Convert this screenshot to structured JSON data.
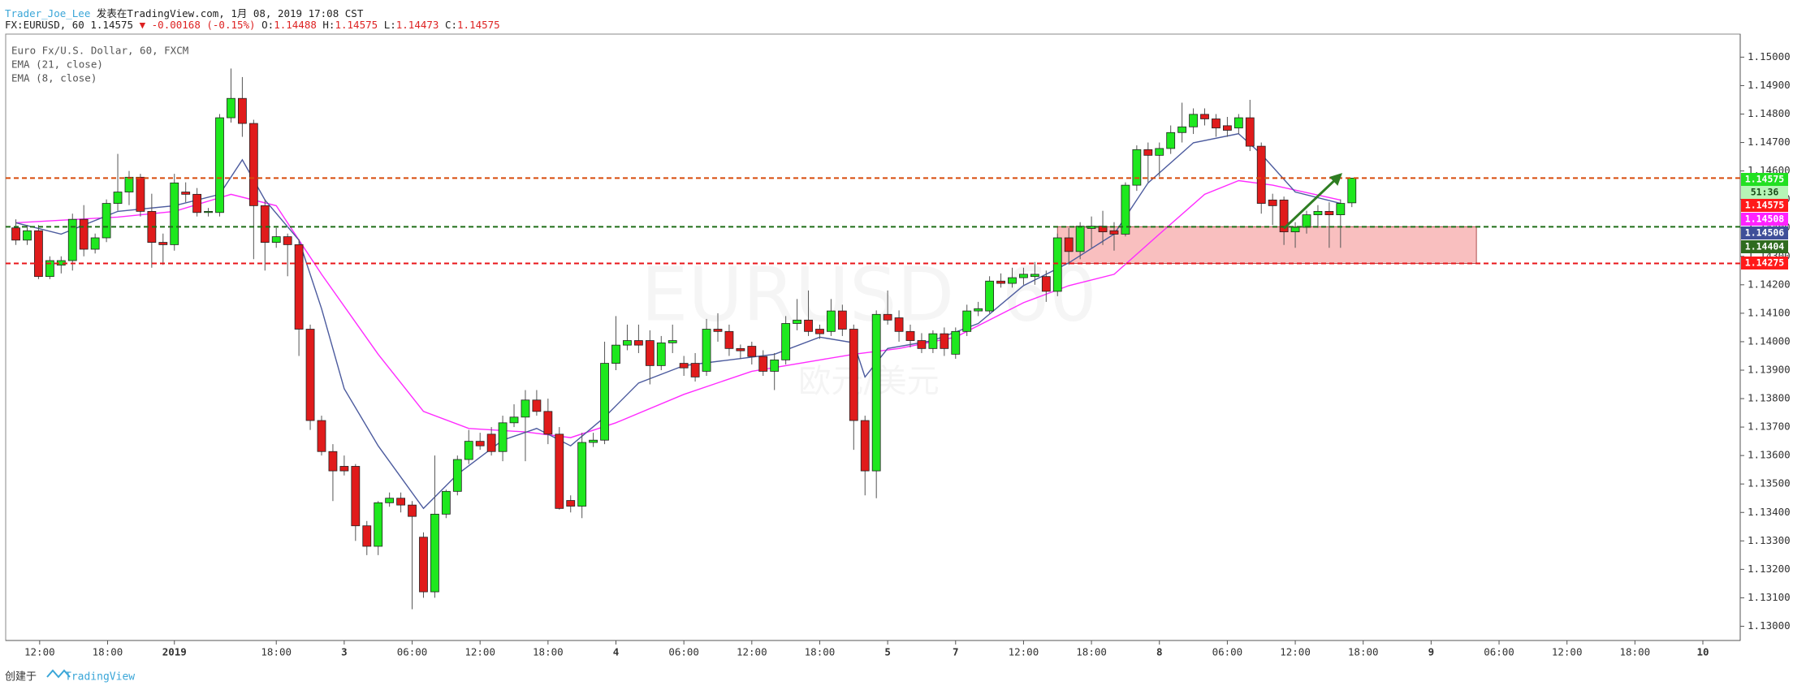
{
  "header": {
    "author": "Trader_Joe_Lee",
    "published": "发表在TradingView.com, 1月 08, 2019 17:08 CST",
    "symbol": "FX:EURUSD, 60",
    "last": "1.14575",
    "change": "▼ -0.00168 (-0.15%)",
    "ohlc": [
      {
        "key": "O:",
        "val": "1.14488"
      },
      {
        "key": "H:",
        "val": "1.14575"
      },
      {
        "key": "L:",
        "val": "1.14473"
      },
      {
        "key": "C:",
        "val": "1.14575"
      }
    ]
  },
  "chart_data": {
    "type": "candlestick",
    "title": "Euro Fx/U.S. Dollar, 60, FXCM",
    "watermark": [
      "EURUSD, 60",
      "欧元/美元"
    ],
    "up_color": "#1ee81e",
    "down_color": "#e01b1b",
    "xlim": [
      -0.9,
      152.3
    ],
    "ylim": [
      1.1295,
      1.15081
    ],
    "grid": false,
    "yticks": [
      {
        "value": 1.13,
        "label": "1.13000"
      },
      {
        "value": 1.131,
        "label": "1.13100"
      },
      {
        "value": 1.132,
        "label": "1.13200"
      },
      {
        "value": 1.133,
        "label": "1.13300"
      },
      {
        "value": 1.134,
        "label": "1.13400"
      },
      {
        "value": 1.135,
        "label": "1.13500"
      },
      {
        "value": 1.136,
        "label": "1.13600"
      },
      {
        "value": 1.137,
        "label": "1.13700"
      },
      {
        "value": 1.138,
        "label": "1.13800"
      },
      {
        "value": 1.139,
        "label": "1.13900"
      },
      {
        "value": 1.14,
        "label": "1.14000"
      },
      {
        "value": 1.141,
        "label": "1.14100"
      },
      {
        "value": 1.142,
        "label": "1.14200"
      },
      {
        "value": 1.143,
        "label": "1.14300"
      },
      {
        "value": 1.144,
        "label": "1.14400"
      },
      {
        "value": 1.145,
        "label": "1.14500"
      },
      {
        "value": 1.146,
        "label": "1.14600"
      },
      {
        "value": 1.147,
        "label": "1.14700"
      },
      {
        "value": 1.148,
        "label": "1.14800"
      },
      {
        "value": 1.149,
        "label": "1.14900"
      },
      {
        "value": 1.15,
        "label": "1.15000"
      }
    ],
    "xticks": [
      {
        "value": 2.1,
        "label": "12:00"
      },
      {
        "value": 8.1,
        "label": "18:00"
      },
      {
        "value": 14,
        "label": "2019"
      },
      {
        "value": 23,
        "label": "18:00"
      },
      {
        "value": 29,
        "label": "3"
      },
      {
        "value": 35,
        "label": "06:00"
      },
      {
        "value": 41,
        "label": "12:00"
      },
      {
        "value": 47,
        "label": "18:00"
      },
      {
        "value": 53,
        "label": "4"
      },
      {
        "value": 59,
        "label": "06:00"
      },
      {
        "value": 65,
        "label": "12:00"
      },
      {
        "value": 71,
        "label": "18:00"
      },
      {
        "value": 77,
        "label": "5"
      },
      {
        "value": 83,
        "label": "7"
      },
      {
        "value": 89,
        "label": "12:00"
      },
      {
        "value": 95,
        "label": "18:00"
      },
      {
        "value": 101,
        "label": "8"
      },
      {
        "value": 107,
        "label": "06:00"
      },
      {
        "value": 113,
        "label": "12:00"
      },
      {
        "value": 119,
        "label": "18:00"
      },
      {
        "value": 125,
        "label": "9"
      },
      {
        "value": 131,
        "label": "06:00"
      },
      {
        "value": 137,
        "label": "12:00"
      },
      {
        "value": 143,
        "label": "18:00"
      },
      {
        "value": 149,
        "label": "10"
      }
    ],
    "open": [
      1.144,
      1.14357,
      1.1439,
      1.14229,
      1.14269,
      1.14285,
      1.1443,
      1.14325,
      1.14365,
      1.14486,
      1.14526,
      1.14578,
      1.14458,
      1.14349,
      1.14341,
      1.14526,
      1.14518,
      1.14454,
      1.14454,
      1.14787,
      1.14855,
      1.14767,
      1.14478,
      1.14349,
      1.14369,
      1.14341,
      1.14044,
      1.13723,
      1.13614,
      1.13562,
      1.13562,
      1.13353,
      1.13281,
      1.13434,
      1.1345,
      1.13426,
      1.13313,
      1.13121,
      1.13394,
      1.13474,
      1.13586,
      1.1365,
      1.13675,
      1.13614,
      1.13715,
      1.13735,
      1.13795,
      1.13755,
      1.13675,
      1.13442,
      1.13422,
      1.13646,
      1.13654,
      1.13924,
      1.13988,
      1.14004,
      1.14004,
      1.13916,
      1.13996,
      1.13924,
      1.13924,
      1.13896,
      1.14044,
      1.14036,
      1.13976,
      1.13984,
      1.13948,
      1.13896,
      1.13936,
      1.14064,
      1.14076,
      1.14044,
      1.14036,
      1.14108,
      1.14044,
      1.13723,
      1.13546,
      1.14096,
      1.14084,
      1.14036,
      1.14004,
      1.13976,
      1.14028,
      1.13956,
      1.14036,
      1.14108,
      1.14108,
      1.14213,
      1.14205,
      1.14225,
      1.14229,
      1.14229,
      1.14177,
      1.14365,
      1.14317,
      1.14398,
      1.14406,
      1.1439,
      1.14378,
      1.1455,
      1.14675,
      1.14655,
      1.14679,
      1.14735,
      1.14755,
      1.14799,
      1.14783,
      1.14759,
      1.14751,
      1.14787,
      1.14687,
      1.14498,
      1.14498,
      1.14386,
      1.14402,
      1.14446,
      1.14458,
      1.14446,
      1.14488
    ],
    "high": [
      1.1443,
      1.1441,
      1.1441,
      1.143,
      1.143,
      1.1445,
      1.1448,
      1.1438,
      1.145,
      1.1466,
      1.146,
      1.1459,
      1.1452,
      1.1438,
      1.1459,
      1.1456,
      1.1454,
      1.1447,
      1.148,
      1.1496,
      1.1493,
      1.1478,
      1.145,
      1.144,
      1.1438,
      1.1436,
      1.1406,
      1.1374,
      1.1364,
      1.136,
      1.1357,
      1.1337,
      1.1344,
      1.1347,
      1.1347,
      1.1344,
      1.1333,
      1.136,
      1.1348,
      1.136,
      1.1369,
      1.1368,
      1.137,
      1.1374,
      1.1378,
      1.1383,
      1.1383,
      1.138,
      1.137,
      1.1346,
      1.1368,
      1.1368,
      1.14,
      1.1409,
      1.1406,
      1.1406,
      1.1404,
      1.1402,
      1.1406,
      1.1395,
      1.1396,
      1.1408,
      1.141,
      1.1406,
      1.1399,
      1.14,
      1.1397,
      1.1396,
      1.1409,
      1.1415,
      1.1418,
      1.1406,
      1.1415,
      1.1413,
      1.1406,
      1.1374,
      1.1411,
      1.1418,
      1.1411,
      1.1406,
      1.1403,
      1.1404,
      1.1405,
      1.1405,
      1.1413,
      1.1414,
      1.1423,
      1.1424,
      1.1426,
      1.1426,
      1.1428,
      1.1425,
      1.1438,
      1.144,
      1.1442,
      1.1444,
      1.1446,
      1.1442,
      1.1456,
      1.1469,
      1.147,
      1.147,
      1.1476,
      1.1484,
      1.1482,
      1.1482,
      1.148,
      1.1479,
      1.148,
      1.1485,
      1.147,
      1.1452,
      1.1451,
      1.1442,
      1.1446,
      1.1448,
      1.1449,
      1.145,
      1.14575
    ],
    "low": [
      1.1434,
      1.1434,
      1.1422,
      1.1422,
      1.1424,
      1.1425,
      1.143,
      1.1431,
      1.1435,
      1.1446,
      1.1448,
      1.1444,
      1.1426,
      1.1427,
      1.1432,
      1.1449,
      1.1444,
      1.1444,
      1.1444,
      1.1477,
      1.1472,
      1.1429,
      1.1425,
      1.1433,
      1.1423,
      1.1395,
      1.1369,
      1.136,
      1.1344,
      1.1353,
      1.133,
      1.1325,
      1.1325,
      1.1342,
      1.134,
      1.1306,
      1.131,
      1.131,
      1.1338,
      1.1346,
      1.1357,
      1.1362,
      1.136,
      1.1358,
      1.137,
      1.1358,
      1.1374,
      1.1364,
      1.1341,
      1.134,
      1.1338,
      1.1363,
      1.1364,
      1.139,
      1.1397,
      1.1396,
      1.1385,
      1.139,
      1.1396,
      1.1388,
      1.1386,
      1.1388,
      1.14,
      1.1395,
      1.1394,
      1.1392,
      1.1388,
      1.1383,
      1.1392,
      1.1404,
      1.1402,
      1.1401,
      1.1402,
      1.1402,
      1.1362,
      1.1346,
      1.1345,
      1.1406,
      1.14,
      1.1398,
      1.1396,
      1.1396,
      1.1395,
      1.1394,
      1.1402,
      1.1409,
      1.141,
      1.1419,
      1.1419,
      1.142,
      1.142,
      1.1414,
      1.1416,
      1.1427,
      1.1429,
      1.1433,
      1.1434,
      1.1432,
      1.1437,
      1.1453,
      1.1456,
      1.1458,
      1.1466,
      1.147,
      1.1473,
      1.1476,
      1.1472,
      1.1472,
      1.1473,
      1.1467,
      1.1445,
      1.1441,
      1.1434,
      1.1433,
      1.1438,
      1.144,
      1.1433,
      1.1433,
      1.14473
    ],
    "close": [
      1.14357,
      1.1439,
      1.14229,
      1.14285,
      1.14285,
      1.1443,
      1.14325,
      1.14365,
      1.14486,
      1.14526,
      1.14578,
      1.14458,
      1.14349,
      1.14341,
      1.14558,
      1.14518,
      1.14454,
      1.14458,
      1.14787,
      1.14855,
      1.14767,
      1.14478,
      1.14349,
      1.14369,
      1.14341,
      1.14044,
      1.13723,
      1.13614,
      1.13546,
      1.13546,
      1.13353,
      1.13281,
      1.13434,
      1.1345,
      1.13426,
      1.13386,
      1.13121,
      1.13394,
      1.13474,
      1.13586,
      1.1365,
      1.13634,
      1.13614,
      1.13715,
      1.13735,
      1.13795,
      1.13755,
      1.13675,
      1.13414,
      1.13422,
      1.13646,
      1.13654,
      1.13924,
      1.13988,
      1.14004,
      1.13988,
      1.13916,
      1.13996,
      1.14004,
      1.13908,
      1.13876,
      1.14044,
      1.14036,
      1.13976,
      1.13968,
      1.13948,
      1.13896,
      1.13936,
      1.14064,
      1.14076,
      1.14036,
      1.14028,
      1.14108,
      1.14044,
      1.13723,
      1.13546,
      1.14096,
      1.14076,
      1.14036,
      1.14004,
      1.13976,
      1.14028,
      1.13976,
      1.14036,
      1.14108,
      1.14116,
      1.14213,
      1.14205,
      1.14225,
      1.14237,
      1.14237,
      1.14177,
      1.14365,
      1.14317,
      1.14406,
      1.14406,
      1.14386,
      1.14378,
      1.1455,
      1.14675,
      1.14655,
      1.14679,
      1.14735,
      1.14755,
      1.14799,
      1.14783,
      1.14751,
      1.14743,
      1.14787,
      1.14687,
      1.14486,
      1.14478,
      1.14386,
      1.14402,
      1.14446,
      1.14458,
      1.14446,
      1.14486,
      1.14575
    ],
    "series": [
      {
        "name": "EMA (21, close)",
        "color": "#ff2bff",
        "x": [
          0,
          9,
          14,
          19,
          23,
          27,
          32,
          36,
          40,
          45,
          49,
          53,
          59,
          65,
          71,
          74,
          78,
          83,
          89,
          93,
          97,
          101,
          105,
          108,
          111,
          117
        ],
        "values": [
          1.14418,
          1.14438,
          1.14458,
          1.14518,
          1.14478,
          1.14237,
          1.13956,
          1.13755,
          1.13695,
          1.13683,
          1.13663,
          1.13715,
          1.13815,
          1.13896,
          1.13936,
          1.13956,
          1.13976,
          1.14016,
          1.14137,
          1.14197,
          1.14237,
          1.14378,
          1.14518,
          1.14566,
          1.1455,
          1.14498
        ]
      },
      {
        "name": "EMA (8, close)",
        "color": "#4c5b9e",
        "x": [
          0,
          4,
          9,
          14,
          18,
          20,
          22,
          25,
          27,
          29,
          32,
          36,
          39,
          43,
          46,
          49,
          52,
          55,
          59,
          63,
          67,
          71,
          74,
          75,
          77,
          81,
          85,
          89,
          93,
          97,
          100,
          104,
          108,
          110,
          113,
          117
        ],
        "values": [
          1.14418,
          1.14378,
          1.14458,
          1.14478,
          1.14518,
          1.14639,
          1.14498,
          1.14357,
          1.14116,
          1.13835,
          1.13634,
          1.13414,
          1.13534,
          1.13654,
          1.13695,
          1.13634,
          1.13735,
          1.13855,
          1.13916,
          1.13936,
          1.13956,
          1.14016,
          1.13996,
          1.13876,
          1.13976,
          1.14004,
          1.14064,
          1.14197,
          1.14277,
          1.14378,
          1.14558,
          1.14699,
          1.14731,
          1.14659,
          1.14526,
          1.14486
        ]
      }
    ],
    "hlines": [
      {
        "value": 1.14575,
        "color": "#d84a0a"
      },
      {
        "value": 1.14404,
        "color": "#1f6d17"
      },
      {
        "value": 1.14275,
        "color": "#e8161a"
      }
    ],
    "zone": {
      "x": [
        92,
        129
      ],
      "y": [
        1.14275,
        1.14404
      ],
      "color": "#f8b4b4"
    },
    "arrow": {
      "x": [
        112,
        117
      ],
      "y": [
        1.14398,
        1.14587
      ],
      "color": "#2e7d22"
    },
    "price_tags": [
      {
        "label": "1.14575",
        "color": "#22e022",
        "text": "#ffffff"
      },
      {
        "label": "51:36",
        "color": "#b6f5b6",
        "text": "#1a4d1a"
      },
      {
        "label": "1.14575",
        "color": "#ff1a1a",
        "text": "#ffffff"
      },
      {
        "label": "1.14508",
        "color": "#ff22ff",
        "text": "#ffffff"
      },
      {
        "label": "1.14506",
        "color": "#3f4f99",
        "text": "#ffffff"
      },
      {
        "label": "1.14404",
        "color": "#2f6b1f",
        "text": "#ffffff"
      },
      {
        "label": "1.14275",
        "color": "#ff1a1a",
        "text": "#ffffff"
      }
    ]
  },
  "footer": {
    "created": "创建于",
    "brand": "TradingView"
  }
}
